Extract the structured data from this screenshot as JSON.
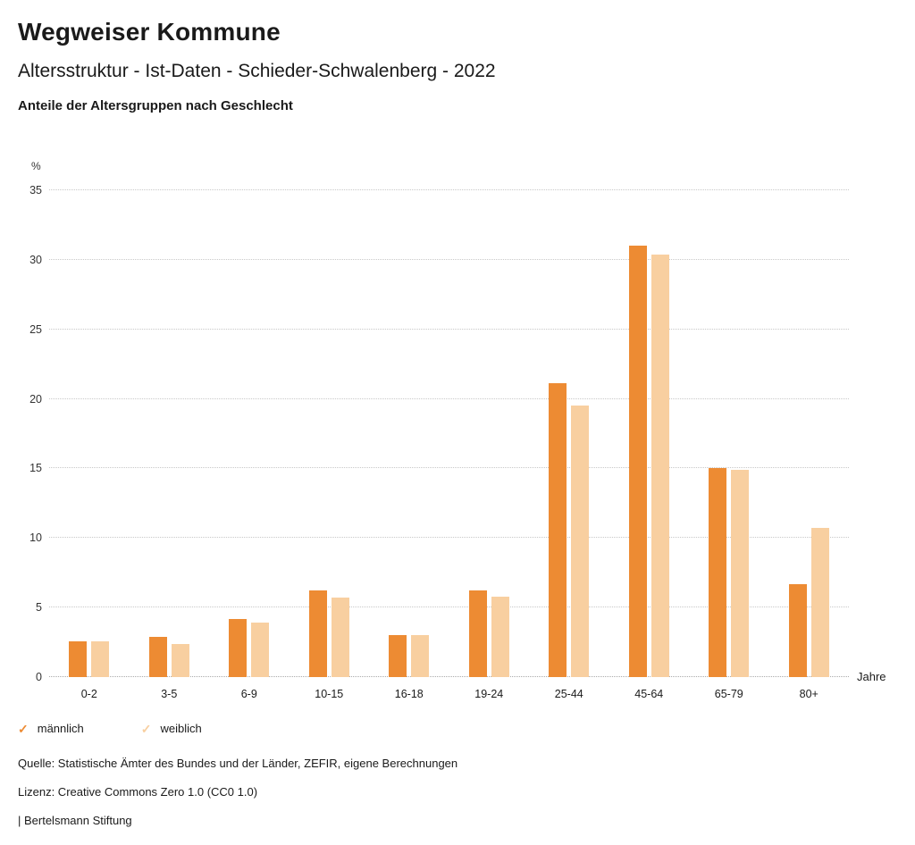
{
  "header": {
    "title": "Wegweiser Kommune",
    "subtitle": "Altersstruktur - Ist-Daten - Schieder-Schwalenberg - 2022",
    "caption": "Anteile der Altersgruppen nach Geschlecht"
  },
  "chart_data": {
    "type": "bar",
    "categories": [
      "0-2",
      "3-5",
      "6-9",
      "10-15",
      "16-18",
      "19-24",
      "25-44",
      "45-64",
      "65-79",
      "80+"
    ],
    "series": [
      {
        "name": "männlich",
        "color": "#ED8B33",
        "values": [
          2.6,
          2.9,
          4.2,
          6.2,
          3.0,
          6.2,
          21.1,
          31.0,
          15.0,
          6.7
        ]
      },
      {
        "name": "weiblich",
        "color": "#F8CFA0",
        "values": [
          2.6,
          2.4,
          3.9,
          5.7,
          3.0,
          5.8,
          19.5,
          30.4,
          14.9,
          10.7
        ]
      }
    ],
    "title": "Anteile der Altersgruppen nach Geschlecht",
    "xlabel": "Jahre",
    "ylabel": "%",
    "ylabel_unit": "%",
    "xlabel_unit": "Jahre",
    "ylim": [
      0,
      35
    ],
    "ytick_step": 5,
    "grid": "horizontal dotted",
    "legend_position": "bottom-left"
  },
  "legend": {
    "check_glyph": "✓",
    "items": [
      {
        "label": "männlich",
        "color": "#ED8B33"
      },
      {
        "label": "weiblich",
        "color": "#F8CFA0"
      }
    ]
  },
  "footer": {
    "source": "Quelle: Statistische Ämter des Bundes und der Länder, ZEFIR, eigene Berechnungen",
    "license": "Lizenz: Creative Commons Zero 1.0 (CC0 1.0)",
    "attribution": "| Bertelsmann Stiftung"
  }
}
